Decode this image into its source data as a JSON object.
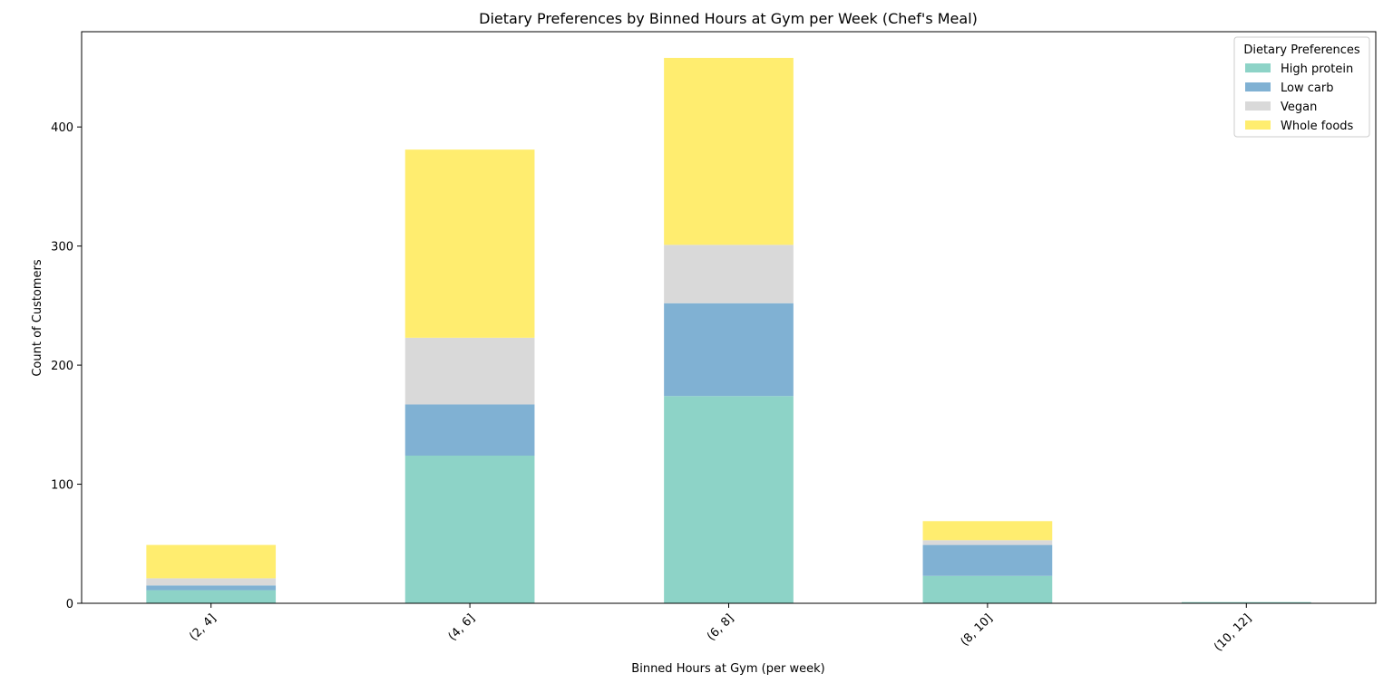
{
  "chart_data": {
    "type": "bar",
    "stacked": true,
    "title": "Dietary Preferences by Binned Hours at Gym per Week (Chef's Meal)",
    "xlabel": "Binned Hours at Gym (per week)",
    "ylabel": "Count of Customers",
    "categories": [
      "(2, 4]",
      "(4, 6]",
      "(6, 8]",
      "(8, 10]",
      "(10, 12]"
    ],
    "ylim": [
      0,
      480
    ],
    "yticks": [
      0,
      100,
      200,
      300,
      400
    ],
    "grid": false,
    "legend": {
      "title": "Dietary Preferences",
      "placement": "top-right"
    },
    "series": [
      {
        "name": "High protein",
        "color": "#8dd3c7",
        "values": [
          11,
          124,
          174,
          23,
          1
        ]
      },
      {
        "name": "Low carb",
        "color": "#80b1d3",
        "values": [
          4,
          43,
          78,
          26,
          0
        ]
      },
      {
        "name": "Vegan",
        "color": "#d9d9d9",
        "values": [
          6,
          56,
          49,
          4,
          0
        ]
      },
      {
        "name": "Whole foods",
        "color": "#ffed6f",
        "values": [
          28,
          158,
          157,
          16,
          0
        ]
      }
    ]
  }
}
